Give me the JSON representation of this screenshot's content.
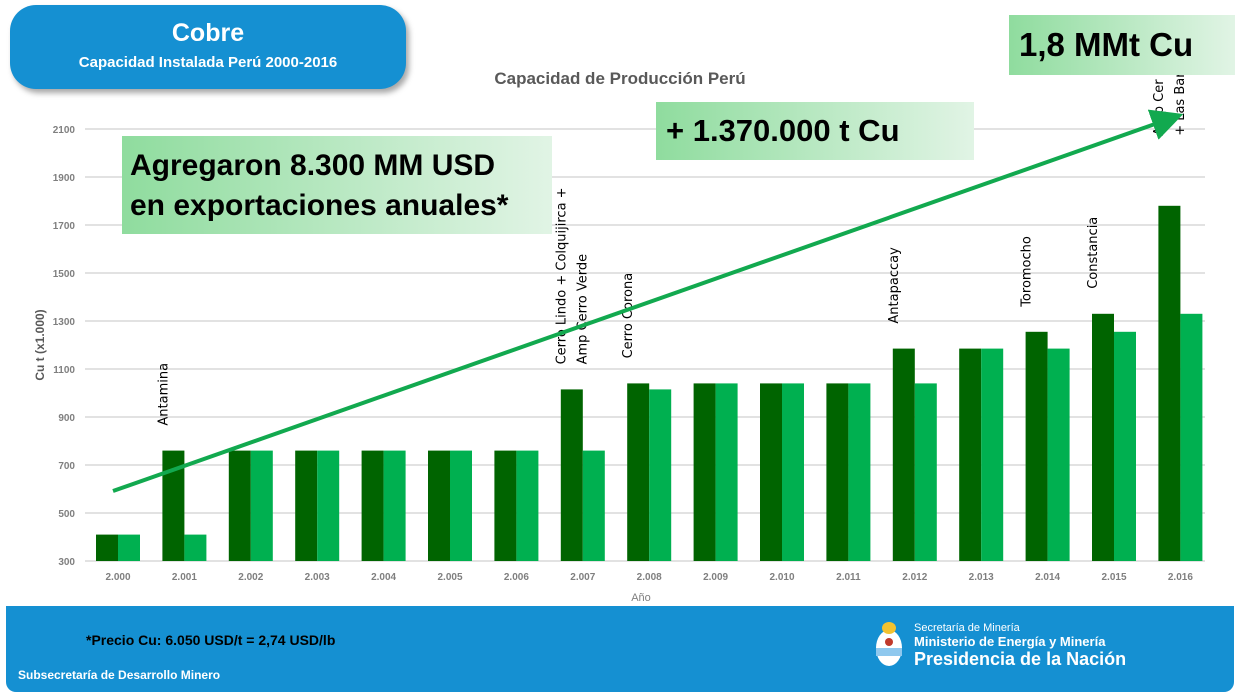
{
  "header": {
    "title": "Cobre",
    "subtitle": "Capacidad Instalada Perú 2000-2016"
  },
  "callouts": {
    "exports": [
      "Agregaron 8.300 MM USD",
      "en exportaciones anuales*"
    ],
    "increase": "+ 1.370.000 t Cu",
    "total": "1,8 MMt Cu"
  },
  "colors": {
    "series_dark": "#006400",
    "series_light": "#00b050",
    "arrow": "#12a94f",
    "banner": "#1590d2"
  },
  "chart_data": {
    "type": "bar",
    "title": "Capacidad de Producción Perú",
    "xlabel": "Año",
    "ylabel": "Cu t (x1.000)",
    "ylim": [
      300,
      2100
    ],
    "yticks": [
      "300",
      "500",
      "700",
      "900",
      "1100",
      "1300",
      "1500",
      "1700",
      "1900",
      "2100"
    ],
    "grid": true,
    "categories": [
      "2.000",
      "2.001",
      "2.002",
      "2.003",
      "2.004",
      "2.005",
      "2.006",
      "2.007",
      "2.008",
      "2.009",
      "2.010",
      "2.011",
      "2.012",
      "2.013",
      "2.014",
      "2.015",
      "2.016"
    ],
    "series": [
      {
        "values": [
          410,
          760,
          760,
          760,
          760,
          760,
          760,
          1015,
          1040,
          1040,
          1040,
          1040,
          1185,
          1185,
          1255,
          1330,
          1780
        ]
      },
      {
        "values": [
          410,
          410,
          760,
          760,
          760,
          760,
          760,
          760,
          1015,
          1040,
          1040,
          1040,
          1040,
          1185,
          1185,
          1255,
          1330
        ]
      }
    ],
    "annotations": [
      {
        "category": "2.001",
        "lines": [
          "Antamina"
        ]
      },
      {
        "category": "2.007",
        "lines": [
          "Cerro Lindo + Colquijirca +",
          "Amp Cerro Verde"
        ]
      },
      {
        "category": "2.008",
        "lines": [
          "Cerro Corona"
        ]
      },
      {
        "category": "2.012",
        "lines": [
          "Antapaccay"
        ]
      },
      {
        "category": "2.014",
        "lines": [
          "Toromocho"
        ]
      },
      {
        "category": "2.015",
        "lines": [
          "Constancia"
        ]
      },
      {
        "category": "2.016",
        "lines": [
          "Amp Cer",
          "+ Las Bar"
        ]
      }
    ]
  },
  "footer": {
    "note": "*Precio Cu: 6.050 USD/t = 2,74 USD/lb",
    "office": "Subsecretaría de Desarrollo Minero",
    "logo_lines": [
      "Secretaría de Minería",
      "Ministerio de Energía y Minería",
      "Presidencia de la Nación"
    ]
  }
}
